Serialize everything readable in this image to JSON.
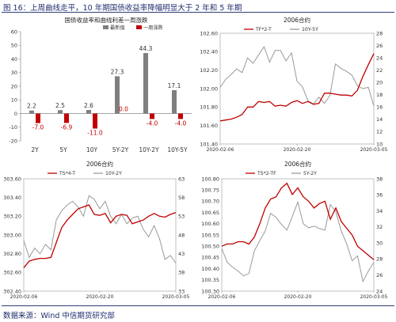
{
  "figure_title": "图 16：上周曲线走平，10 年期国债收益率降幅明显大于 2 年和 5 年期",
  "source": "数据来源：Wind 中信期货研究部",
  "colors": {
    "red": "#c00000",
    "gray": "#7f7f7f",
    "header": "#1f2d6e"
  },
  "chart_data": [
    {
      "type": "bar",
      "title": "国债收益率和曲线利差一周涨跌",
      "categories": [
        "2Y",
        "5Y",
        "10Y",
        "5Y-2Y",
        "10Y-2Y",
        "10Y-5Y"
      ],
      "ylim": [
        -20,
        60
      ],
      "yticks": [
        -20,
        -10,
        0,
        10,
        20,
        30,
        40,
        50,
        60
      ],
      "legend_position": "top",
      "series": [
        {
          "name": "最新值",
          "color": "#7f7f7f",
          "values": [
            2.2,
            2.5,
            2.6,
            27.3,
            44.3,
            17.1
          ],
          "labels": [
            "2.2",
            "2.5",
            "2.6",
            "27.3",
            "44.3",
            "17.1"
          ]
        },
        {
          "name": "一周涨跌",
          "color": "#c00000",
          "values": [
            -7.0,
            -6.9,
            -11.0,
            0.0,
            -4.0,
            -4.0
          ],
          "labels": [
            "-7.0",
            "-6.9",
            "-11.0",
            "0.0",
            "-4.0",
            "-4.0"
          ]
        }
      ]
    },
    {
      "type": "line",
      "title": "2006合约",
      "x_ticks": [
        "2020-02-06",
        "2020-02-20",
        "2020-03-05"
      ],
      "left_axis": {
        "min": 101.4,
        "max": 102.6,
        "ticks": [
          "101.40",
          "101.60",
          "101.80",
          "102.00",
          "102.20",
          "102.40",
          "102.60"
        ]
      },
      "right_axis": {
        "min": 10,
        "max": 28,
        "ticks": [
          "10",
          "12",
          "14",
          "16",
          "18",
          "20",
          "22",
          "24",
          "26",
          "28"
        ]
      },
      "legend_position": "top",
      "series": [
        {
          "name": "TF*2-T",
          "color": "#c00000",
          "axis": "left",
          "values": [
            101.65,
            101.66,
            101.67,
            101.69,
            101.72,
            101.8,
            101.8,
            101.86,
            101.85,
            101.86,
            101.81,
            101.82,
            101.81,
            101.85,
            101.87,
            101.84,
            101.86,
            101.83,
            101.84,
            101.95,
            101.95,
            101.94,
            101.93,
            101.93,
            101.92,
            101.98,
            102.13,
            102.26,
            102.38
          ]
        },
        {
          "name": "10Y-5Y",
          "color": "#9a9a9a",
          "axis": "right",
          "values": [
            19.2,
            20.5,
            21.3,
            22.2,
            21.6,
            24.0,
            23.1,
            24.5,
            25.8,
            23.3,
            25.2,
            25.2,
            23.5,
            24.8,
            20.2,
            19.3,
            17.0,
            16.5,
            17.6,
            16.6,
            17.9,
            23.0,
            22.3,
            21.8,
            21.2,
            19.5,
            19.0,
            19.2,
            16.2
          ]
        }
      ]
    },
    {
      "type": "line",
      "title": "2006合约",
      "x_ticks": [
        "2020-02-06",
        "2020-02-20",
        "2020-03-05"
      ],
      "left_axis": {
        "min": 302.4,
        "max": 303.6,
        "ticks": [
          "302.40",
          "302.60",
          "302.80",
          "303.00",
          "303.20",
          "303.40",
          "303.60"
        ]
      },
      "right_axis": {
        "min": 33,
        "max": 63,
        "ticks": [
          "33",
          "38",
          "43",
          "48",
          "53",
          "58",
          "63"
        ]
      },
      "legend_position": "top",
      "series": [
        {
          "name": "TS*4-T",
          "color": "#c00000",
          "axis": "left",
          "values": [
            302.65,
            302.72,
            302.74,
            302.75,
            302.75,
            302.76,
            302.92,
            303.08,
            303.16,
            303.22,
            303.28,
            303.3,
            303.32,
            303.22,
            303.21,
            303.23,
            303.13,
            303.2,
            303.22,
            303.21,
            303.12,
            303.14,
            303.16,
            303.2,
            303.23,
            303.2,
            303.19,
            303.22,
            303.24
          ]
        },
        {
          "name": "10Y-2Y",
          "color": "#9a9a9a",
          "axis": "right",
          "values": [
            46.5,
            42.0,
            44.5,
            43.0,
            45.5,
            44.0,
            52.0,
            54.5,
            56.0,
            57.0,
            55.5,
            53.0,
            58.5,
            57.5,
            55.0,
            57.0,
            53.0,
            51.0,
            53.5,
            51.0,
            52.5,
            53.0,
            49.5,
            47.5,
            50.5,
            47.0,
            41.5,
            42.5,
            40.5
          ]
        }
      ]
    },
    {
      "type": "line",
      "title": "2006合约",
      "x_ticks": [
        "2020-02-06",
        "2020-02-20",
        "2020-03-05"
      ],
      "left_axis": {
        "min": 100.3,
        "max": 100.8,
        "ticks": [
          "100.30",
          "100.35",
          "100.40",
          "100.45",
          "100.50",
          "100.55",
          "100.60",
          "100.65",
          "100.70",
          "100.75",
          "100.80"
        ]
      },
      "right_axis": {
        "min": 24,
        "max": 38,
        "ticks": [
          "24",
          "26",
          "28",
          "30",
          "32",
          "34",
          "36",
          "38"
        ]
      },
      "legend_position": "top",
      "series": [
        {
          "name": "TS*2-TF",
          "color": "#c00000",
          "axis": "left",
          "values": [
            100.5,
            100.51,
            100.51,
            100.52,
            100.52,
            100.51,
            100.54,
            100.6,
            100.67,
            100.71,
            100.72,
            100.76,
            100.78,
            100.73,
            100.76,
            100.72,
            100.7,
            100.67,
            100.69,
            100.7,
            100.62,
            100.67,
            100.61,
            100.58,
            100.55,
            100.5,
            100.48,
            100.46,
            100.44
          ]
        },
        {
          "name": "5Y-2Y",
          "color": "#9a9a9a",
          "axis": "right",
          "values": [
            29.3,
            27.6,
            27.0,
            26.5,
            25.9,
            26.2,
            29.0,
            30.3,
            31.5,
            33.7,
            33.2,
            32.3,
            31.6,
            33.3,
            35.1,
            32.4,
            31.9,
            32.1,
            31.8,
            31.6,
            34.8,
            33.9,
            31.5,
            29.9,
            27.8,
            28.4,
            25.2,
            26.5,
            27.6
          ]
        }
      ]
    }
  ]
}
